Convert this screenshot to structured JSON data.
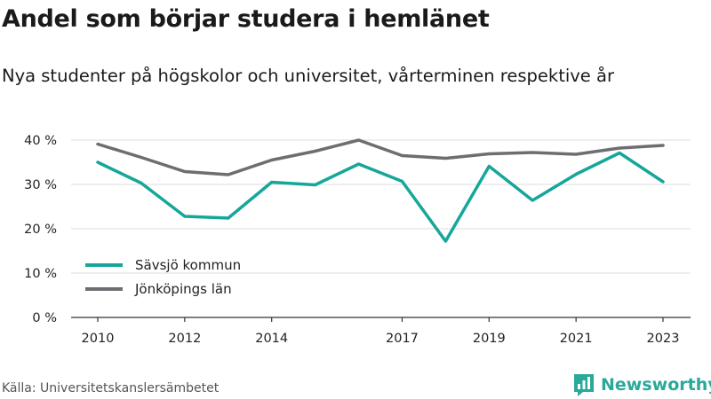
{
  "title": "Andel som börjar studera i hemlänet",
  "subtitle": "Nya studenter på högskolor och universitet, vårterminen respektive år",
  "source": "Källa: Universitetskanslersämbetet",
  "brand": {
    "name": "Newsworthy",
    "icon": "newsworthy-logo-icon",
    "color": "#2aa89a"
  },
  "chart_data": {
    "type": "line",
    "x": [
      2010,
      2011,
      2012,
      2013,
      2014,
      2015,
      2016,
      2017,
      2018,
      2019,
      2020,
      2021,
      2022,
      2023
    ],
    "x_ticks": [
      "2010",
      "2012",
      "2014",
      "2017",
      "2019",
      "2021",
      "2023"
    ],
    "y_ticks": [
      "0 %",
      "10 %",
      "20 %",
      "30 %",
      "40 %"
    ],
    "ylim": [
      0,
      40
    ],
    "grid": "horizontal",
    "legend_position": "bottom-left",
    "series": [
      {
        "name": "Sävsjö kommun",
        "color": "#17a69a",
        "values": [
          35,
          30.3,
          22.8,
          22.4,
          30.5,
          29.9,
          34.6,
          30.7,
          17.2,
          34.1,
          26.4,
          32.3,
          37.1,
          30.6
        ]
      },
      {
        "name": "Jönköpings län",
        "color": "#6d6d72",
        "values": [
          39.1,
          36.1,
          32.9,
          32.2,
          35.5,
          37.5,
          40,
          36.5,
          35.9,
          36.9,
          37.2,
          36.8,
          38.2,
          38.8
        ]
      }
    ]
  }
}
